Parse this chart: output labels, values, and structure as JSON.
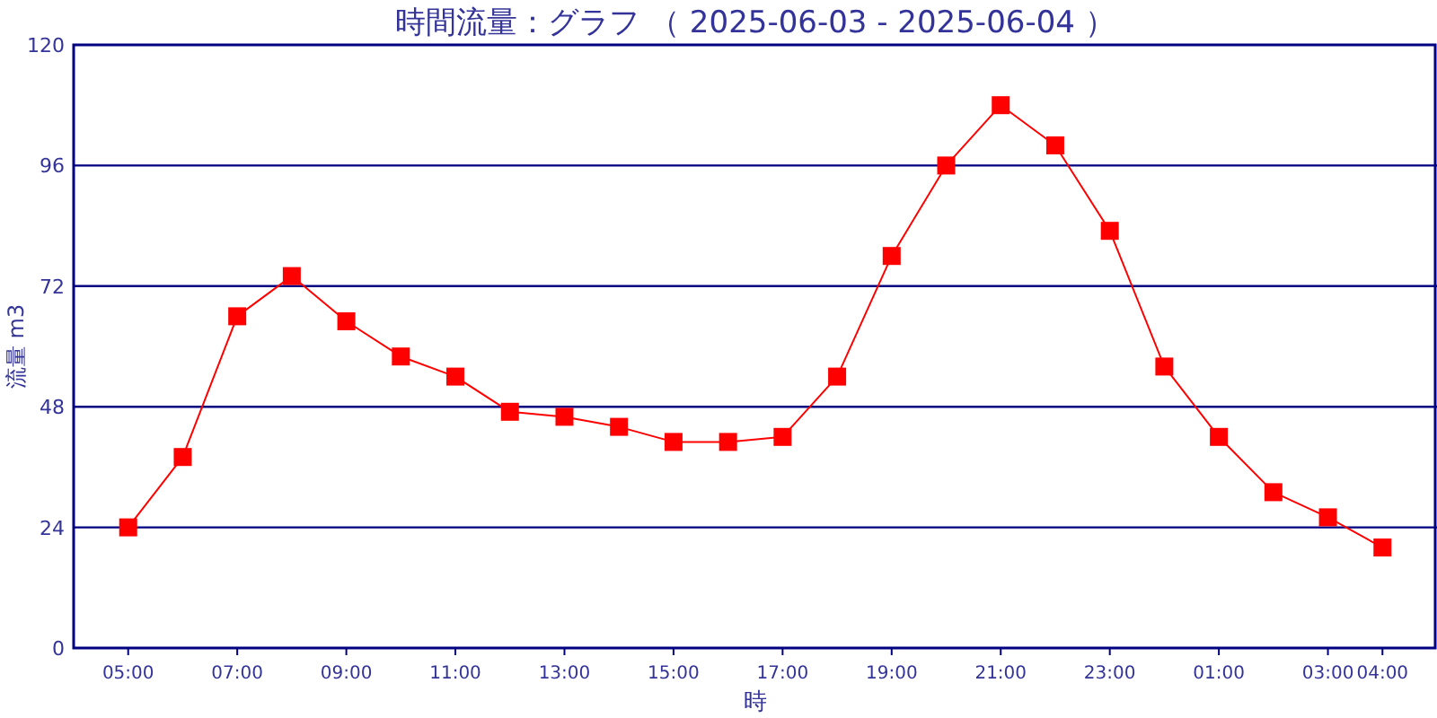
{
  "chart_data": {
    "type": "line",
    "title": "時間流量：グラフ （ 2025-06-03 - 2025-06-04 ）",
    "xlabel": "時",
    "ylabel": "流量 m3",
    "categories": [
      "05:00",
      null,
      "07:00",
      null,
      "09:00",
      null,
      "11:00",
      null,
      "13:00",
      null,
      "15:00",
      null,
      "17:00",
      null,
      "19:00",
      null,
      "21:00",
      null,
      "23:00",
      null,
      "01:00",
      null,
      "03:00",
      "04:00"
    ],
    "series": [
      {
        "color": "#ff0000",
        "values": [
          24,
          38,
          66,
          74,
          65,
          58,
          54,
          47,
          46,
          44,
          41,
          41,
          42,
          54,
          78,
          96,
          108,
          100,
          83,
          56,
          42,
          31,
          26,
          20
        ]
      }
    ],
    "ylim": [
      0,
      120
    ],
    "yticks": [
      0,
      24,
      48,
      72,
      96,
      120
    ],
    "grid": "y",
    "marker": "square",
    "line_style": "solid"
  }
}
